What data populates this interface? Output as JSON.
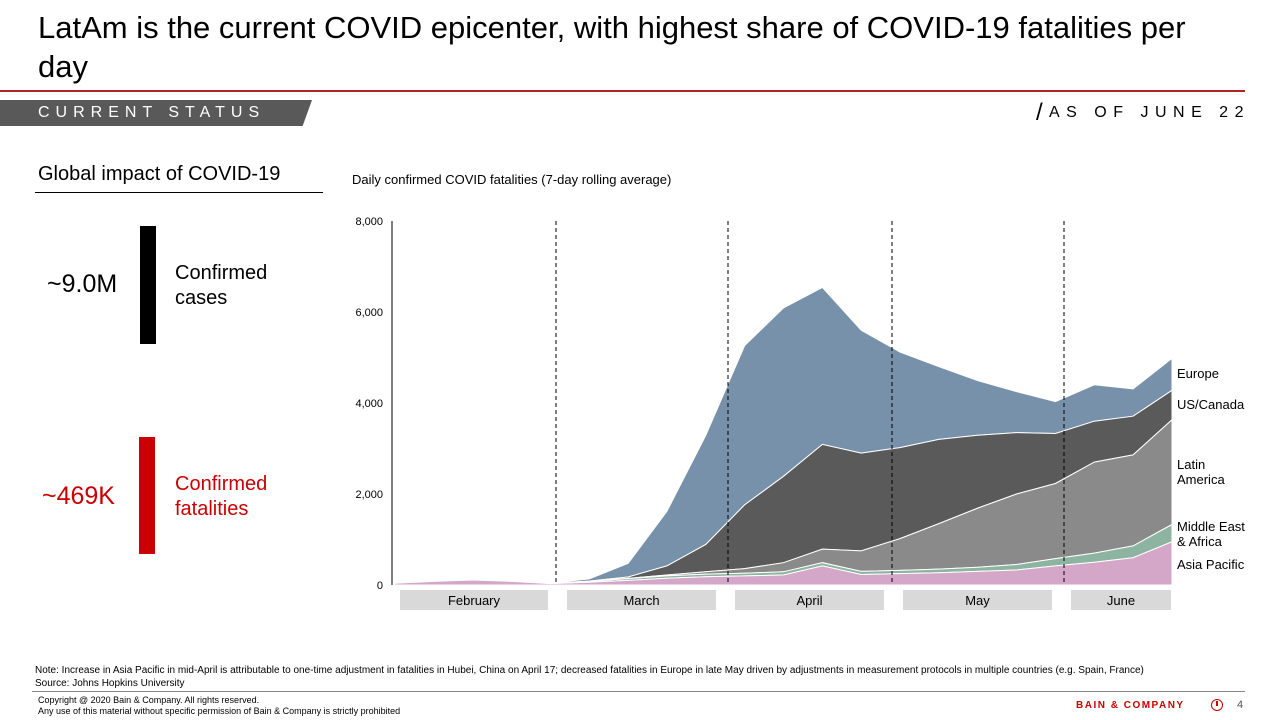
{
  "slide": {
    "title": "LatAm is the current COVID epicenter, with highest share of COVID-19 fatalities per day",
    "section_tag": "CURRENT STATUS",
    "as_of": "AS OF JUNE 22",
    "accent_color": "#b22222",
    "tag_color": "#595959"
  },
  "impact": {
    "title": "Global impact of COVID-19",
    "cases_value": "~9.0M",
    "cases_label": "Confirmed cases",
    "cases_color": "#000000",
    "fatalities_value": "~469K",
    "fatalities_label": "Confirmed fatalities",
    "fatalities_color": "#cc0000"
  },
  "chart_data": {
    "type": "area",
    "stacked": true,
    "title": "Daily confirmed COVID fatalities (7-day rolling average)",
    "ylim": [
      0,
      8000
    ],
    "yticks": [
      0,
      2000,
      4000,
      6000,
      8000
    ],
    "ytick_labels": [
      "0",
      "2,000",
      "4,000",
      "6,000",
      "8,000"
    ],
    "grid": false,
    "month_labels": [
      "February",
      "March",
      "April",
      "May",
      "June"
    ],
    "x": [
      "Feb 1",
      "Feb 8",
      "Feb 15",
      "Feb 22",
      "Mar 1",
      "Mar 8",
      "Mar 15",
      "Mar 22",
      "Mar 29",
      "Apr 5",
      "Apr 12",
      "Apr 19",
      "Apr 26",
      "May 3",
      "May 10",
      "May 17",
      "May 24",
      "May 31",
      "Jun 7",
      "Jun 14",
      "Jun 22"
    ],
    "series": [
      {
        "name": "Asia Pacific",
        "color": "#d4a6c8",
        "values": [
          40,
          80,
          110,
          80,
          30,
          60,
          100,
          150,
          180,
          200,
          220,
          420,
          230,
          250,
          270,
          300,
          330,
          420,
          500,
          600,
          950
        ]
      },
      {
        "name": "Middle East & Africa",
        "color": "#8cb4a0",
        "values": [
          0,
          0,
          0,
          5,
          10,
          20,
          40,
          50,
          60,
          60,
          70,
          70,
          70,
          70,
          80,
          90,
          120,
          160,
          200,
          260,
          380
        ]
      },
      {
        "name": "Latin America",
        "color": "#8a8a8a",
        "values": [
          0,
          0,
          0,
          0,
          0,
          0,
          5,
          20,
          50,
          100,
          200,
          300,
          450,
          700,
          1000,
          1300,
          1550,
          1650,
          2000,
          2000,
          2300
        ]
      },
      {
        "name": "US/Canada",
        "color": "#5a5a5a",
        "values": [
          0,
          0,
          0,
          0,
          0,
          5,
          30,
          200,
          600,
          1400,
          1900,
          2300,
          2150,
          2000,
          1850,
          1600,
          1350,
          1100,
          900,
          850,
          650
        ]
      },
      {
        "name": "Europe",
        "color": "#7891ab",
        "values": [
          0,
          0,
          0,
          0,
          5,
          50,
          300,
          1200,
          2400,
          3500,
          3700,
          3450,
          2700,
          2100,
          1600,
          1200,
          900,
          700,
          800,
          600,
          700
        ]
      }
    ]
  },
  "note": "Note: Increase in Asia Pacific in mid-April is attributable to one-time adjustment in fatalities in Hubei, China on April 17; decreased fatalities in Europe in late May driven by adjustments in measurement protocols in multiple countries (e.g. Spain, France)",
  "source": "Source: Johns Hopkins University",
  "footer": {
    "copyright_line1": "Copyright @ 2020 Bain & Company. All rights reserved.",
    "copyright_line2": "Any use of this material without specific permission of Bain & Company is strictly prohibited",
    "brand": "BAIN & COMPANY",
    "page_number": "4"
  }
}
